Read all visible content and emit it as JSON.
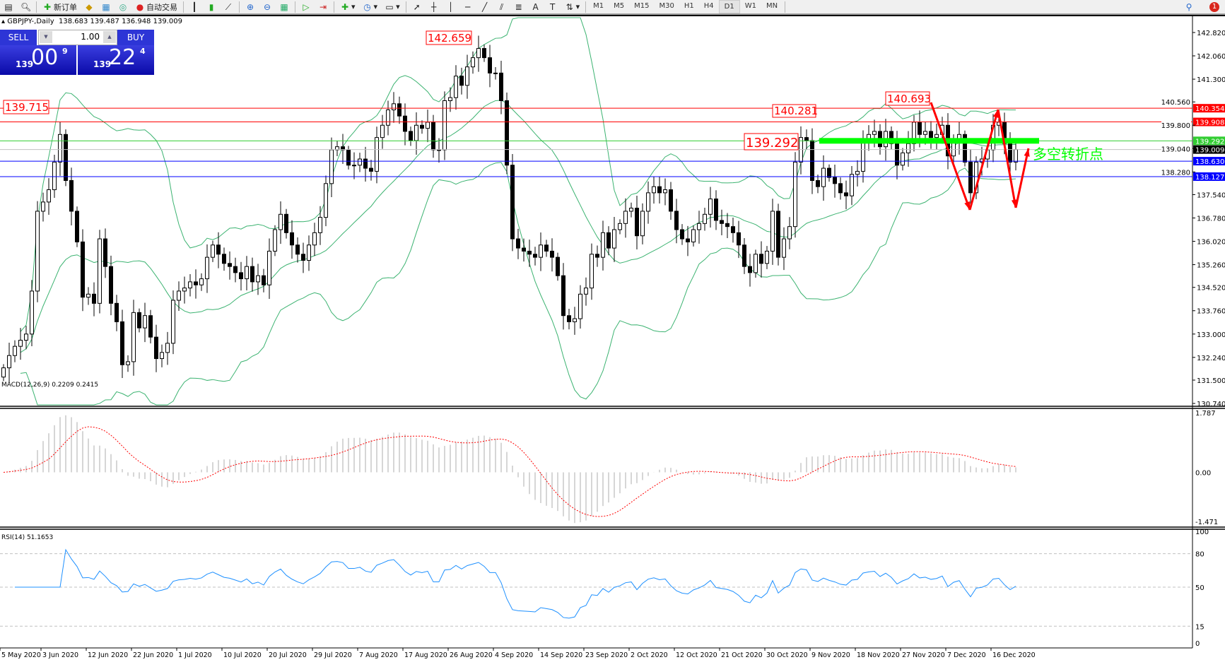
{
  "toolbar": {
    "new_order_label": "新订单",
    "auto_trading_label": "自动交易",
    "timeframes": [
      "M1",
      "M5",
      "M15",
      "M30",
      "H1",
      "H4",
      "D1",
      "W1",
      "MN"
    ],
    "active_timeframe": "D1",
    "notification_count": "1"
  },
  "chart": {
    "title": "GBPJPY-,Daily",
    "ohlc_readout": "138.683 139.487 136.948 139.009"
  },
  "one_click": {
    "sell_label": "SELL",
    "buy_label": "BUY",
    "lot": "1.00",
    "sell_price": {
      "prefix": "139",
      "big": "00",
      "sup": "9"
    },
    "buy_price": {
      "prefix": "139",
      "big": "22",
      "sup": "4"
    }
  },
  "price_axis": [
    "142.820",
    "142.060",
    "141.300",
    "140.560",
    "139.800",
    "139.040",
    "138.280",
    "137.540",
    "136.780",
    "136.020",
    "135.260",
    "134.520",
    "133.760",
    "133.000",
    "132.240",
    "131.500",
    "130.740"
  ],
  "horizontal_lines": [
    {
      "price": 140.354,
      "label": "140.354",
      "color": "#ff0000"
    },
    {
      "price": 139.908,
      "label": "139.908",
      "color": "#ff0000"
    },
    {
      "price": 139.292,
      "label": "139.292",
      "color": "#32cd32"
    },
    {
      "price": 139.009,
      "label": "139.009",
      "color": "#000000"
    },
    {
      "price": 138.63,
      "label": "138.630",
      "color": "#0000ff"
    },
    {
      "price": 138.127,
      "label": "138.127",
      "color": "#0000ff"
    }
  ],
  "price_callouts": [
    "139.715",
    "142.659",
    "140.281",
    "140.693",
    "139.292"
  ],
  "annotation_text": "多空转折点",
  "macd": {
    "label": "MACD(12,26,9) 0.2209 0.2415",
    "axis": [
      "1.787",
      "0.00",
      "-1.471"
    ]
  },
  "rsi": {
    "label": "RSI(14) 51.1653",
    "axis": [
      "100",
      "80",
      "50",
      "15",
      "0"
    ]
  },
  "date_axis": [
    "5 May 2020",
    "3 Jun 2020",
    "12 Jun 2020",
    "22 Jun 2020",
    "1 Jul 2020",
    "10 Jul 2020",
    "20 Jul 2020",
    "29 Jul 2020",
    "7 Aug 2020",
    "17 Aug 2020",
    "26 Aug 2020",
    "4 Sep 2020",
    "14 Sep 2020",
    "23 Sep 2020",
    "2 Oct 2020",
    "12 Oct 2020",
    "21 Oct 2020",
    "30 Oct 2020",
    "9 Nov 2020",
    "18 Nov 2020",
    "27 Nov 2020",
    "7 Dec 2020",
    "16 Dec 2020"
  ],
  "colors": {
    "bands": "#3cb371",
    "macd_hist": "#c0c0c0",
    "macd_signal": "#ff0000",
    "rsi": "#1e90ff",
    "callout": "#ff0000",
    "annotation": "#00ff00"
  },
  "chart_data": {
    "type": "candlestick",
    "price_range": [
      130.74,
      142.82
    ],
    "closes": [
      131.9,
      132.3,
      132.6,
      132.8,
      133.0,
      134.4,
      137.0,
      137.3,
      137.7,
      138.6,
      139.5,
      138.0,
      137.0,
      136.0,
      134.2,
      134.3,
      134.0,
      136.1,
      135.2,
      134.0,
      133.4,
      132.0,
      132.1,
      133.7,
      133.2,
      133.6,
      132.9,
      132.2,
      132.4,
      132.7,
      134.1,
      134.4,
      134.5,
      134.7,
      134.6,
      134.8,
      135.5,
      135.9,
      135.6,
      135.3,
      135.2,
      135.0,
      134.8,
      135.2,
      134.7,
      134.9,
      134.6,
      135.7,
      136.4,
      136.9,
      136.3,
      135.9,
      135.6,
      135.4,
      135.9,
      136.3,
      136.8,
      137.9,
      139.0,
      139.1,
      139.0,
      138.5,
      138.5,
      138.7,
      138.4,
      138.3,
      139.4,
      139.8,
      140.3,
      140.5,
      140.1,
      139.6,
      139.3,
      139.8,
      139.7,
      139.9,
      139.0,
      139.0,
      140.6,
      140.7,
      141.4,
      141.1,
      141.7,
      142.0,
      142.3,
      142.0,
      141.5,
      141.5,
      140.6,
      138.5,
      136.1,
      135.8,
      135.7,
      135.6,
      135.5,
      135.9,
      135.7,
      135.5,
      134.9,
      133.6,
      133.4,
      133.5,
      134.3,
      134.5,
      135.6,
      135.5,
      136.3,
      135.8,
      136.4,
      136.6,
      137.0,
      137.1,
      136.2,
      137.0,
      137.6,
      137.8,
      137.6,
      137.7,
      137.0,
      136.4,
      136.1,
      136.0,
      136.4,
      136.6,
      136.9,
      137.4,
      136.7,
      136.6,
      136.5,
      136.3,
      135.9,
      135.2,
      135.0,
      135.6,
      135.3,
      135.7,
      137.0,
      135.5,
      136.1,
      136.5,
      138.6,
      139.4,
      139.3,
      138.0,
      137.8,
      138.4,
      138.1,
      137.9,
      137.6,
      137.5,
      138.2,
      138.3,
      139.3,
      139.5,
      139.6,
      139.1,
      139.6,
      139.2,
      138.5,
      138.9,
      139.2,
      139.9,
      139.5,
      139.6,
      139.4,
      139.5,
      139.8,
      138.8,
      139.3,
      139.5,
      138.6,
      137.6,
      138.6,
      138.7,
      139.0,
      139.8,
      139.9,
      139.2,
      138.6,
      139.009
    ],
    "indicators": [
      "Bollinger Bands(20,2)",
      "MACD(12,26,9)",
      "RSI(14)"
    ]
  }
}
